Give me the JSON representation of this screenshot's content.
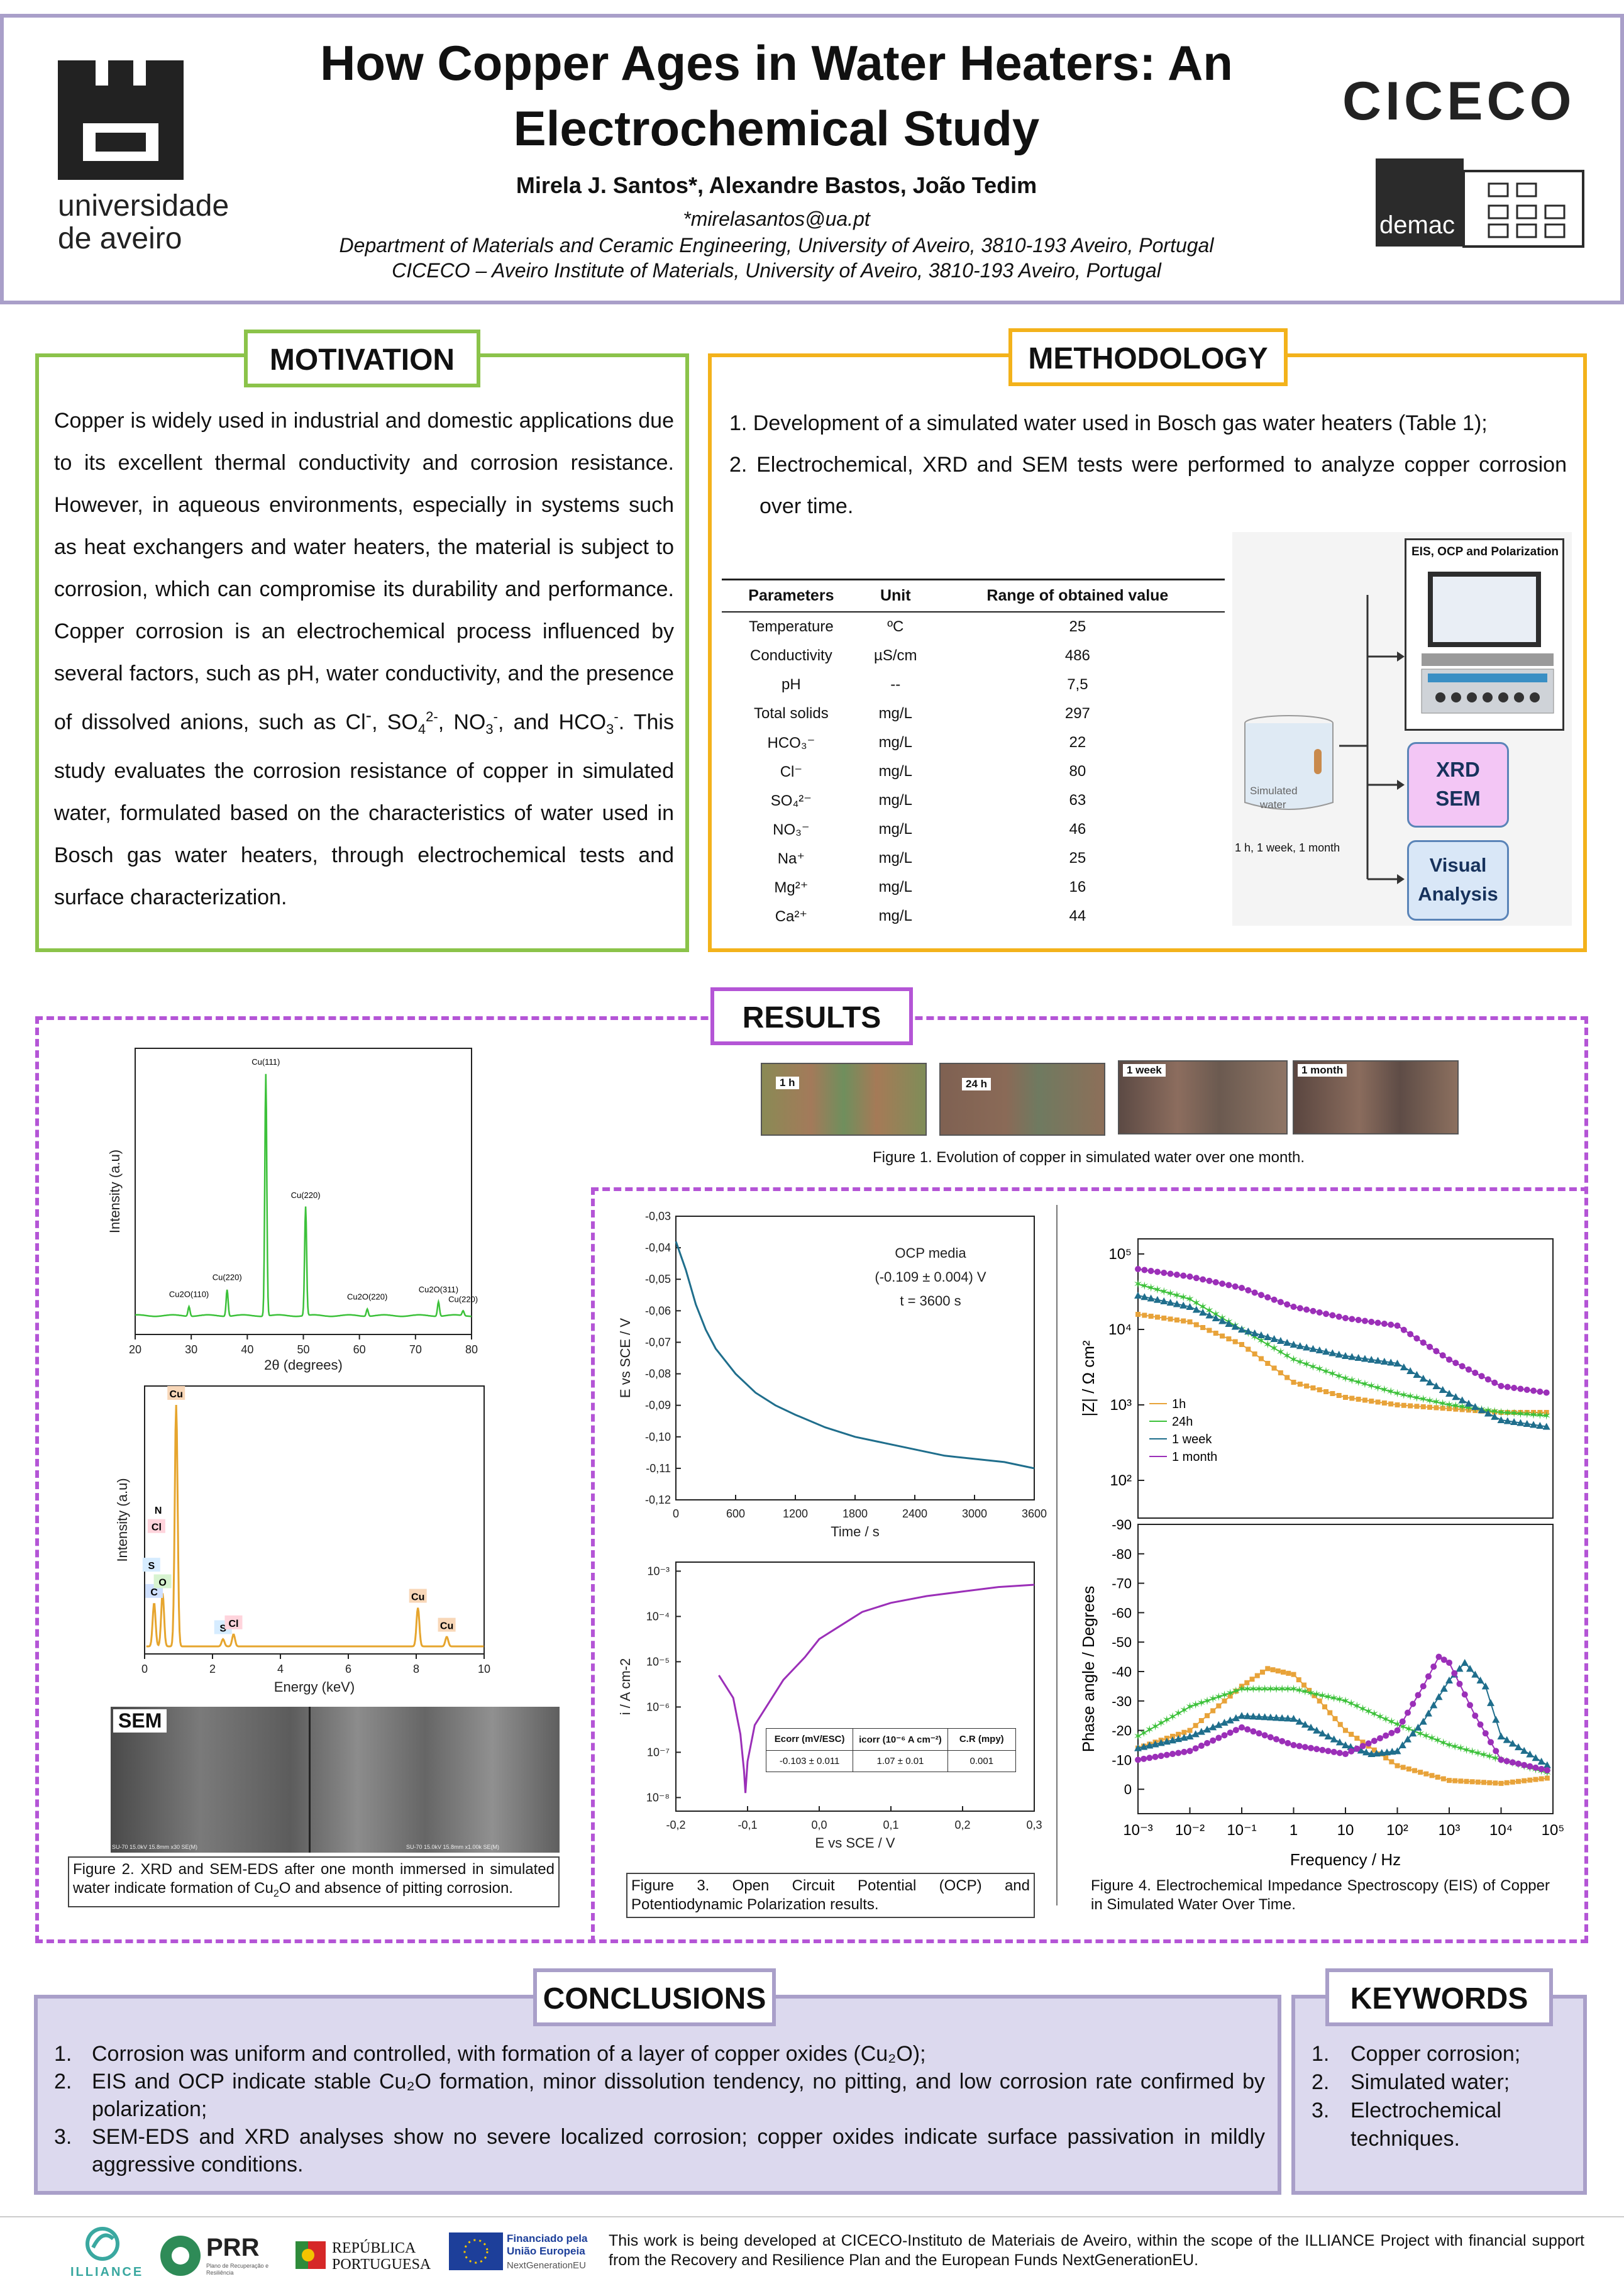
{
  "header": {
    "university_line1": "universidade",
    "university_line2": "de aveiro",
    "title_line1": "How Copper Ages in Water Heaters: An",
    "title_line2": "Electrochemical Study",
    "authors": "Mirela J. Santos*, Alexandre Bastos, João Tedim",
    "email": "*mirelasantos@ua.pt",
    "affiliation1": "Department of Materials and Ceramic Engineering, University of Aveiro, 3810-193 Aveiro, Portugal",
    "affiliation2": "CICECO – Aveiro Institute of Materials, University of Aveiro, 3810-193 Aveiro, Portugal",
    "ciceco_logo": "CICECO",
    "demac_logo": "demac"
  },
  "motivation": {
    "title": "MOTIVATION",
    "text_a": "Copper is widely used in industrial and domestic applications due to its excellent thermal conductivity and corrosion resistance. However, in aqueous environments, especially in systems such as heat exchangers and water heaters, the material is subject to corrosion, which can compromise its durability and performance. Copper corrosion is an electrochemical process influenced by several factors, such as pH, water conductivity, and the presence of dissolved anions, such as Cl",
    "text_b": ", SO",
    "text_c": ", NO",
    "text_d": ", and HCO",
    "text_e": ". This study evaluates the corrosion resistance of copper in simulated water, formulated based on the characteristics of water used in Bosch gas water heaters, through electrochemical tests and surface characterization."
  },
  "methodology": {
    "title": "METHODOLOGY",
    "items": [
      "1. Development of a simulated water used in Bosch gas water heaters (Table 1);",
      "2. Electrochemical, XRD and SEM tests were performed to analyze copper corrosion over time."
    ],
    "table": {
      "headers": [
        "Parameters",
        "Unit",
        "Range of obtained value"
      ],
      "rows": [
        [
          "Temperature",
          "ºC",
          "25"
        ],
        [
          "Conductivity",
          "µS/cm",
          "486"
        ],
        [
          "pH",
          "--",
          "7,5"
        ],
        [
          "Total solids",
          "mg/L",
          "297"
        ],
        [
          "HCO₃⁻",
          "mg/L",
          "22"
        ],
        [
          "Cl⁻",
          "mg/L",
          "80"
        ],
        [
          "SO₄²⁻",
          "mg/L",
          "63"
        ],
        [
          "NO₃⁻",
          "mg/L",
          "46"
        ],
        [
          "Na⁺",
          "mg/L",
          "25"
        ],
        [
          "Mg²⁺",
          "mg/L",
          "16"
        ],
        [
          "Ca²⁺",
          "mg/L",
          "44"
        ]
      ]
    },
    "diagram": {
      "eis_label": "EIS, OCP and Polarization",
      "beaker_label_1": "Simulated",
      "beaker_label_2": "water",
      "times_label": "1 h, 1 week, 1 month",
      "xrd_line1": "XRD",
      "xrd_line2": "SEM",
      "visual_line1": "Visual",
      "visual_line2": "Analysis"
    }
  },
  "results": {
    "title": "RESULTS",
    "photo_labels": [
      "1 h",
      "24 h",
      "1 week",
      "1 month"
    ],
    "fig1_caption": "Figure 1. Evolution of copper in simulated water over one month.",
    "fig2_caption_a": "Figure 2. XRD and SEM-EDS after one month immersed in simulated water indicate formation of Cu",
    "fig2_caption_b": "O and absence of pitting corrosion.",
    "fig3_caption": "Figure 3. Open Circuit Potential (OCP) and Potentiodynamic Polarization results.",
    "fig4_caption": "Figure 4. Electrochemical Impedance Spectroscopy (EIS) of Copper in Simulated Water Over Time.",
    "sem_label": "SEM",
    "sem_footer_left": "SU-70 15.0kV 15.8mm x30 SE(M)",
    "sem_footer_right": "SU-70 15.0kV 15.8mm x1.00k SE(M)"
  },
  "chart_data": [
    {
      "type": "line",
      "title": "XRD",
      "xlabel": "2θ (degrees)",
      "ylabel": "Intensity (a.u)",
      "xlim": [
        20,
        80
      ],
      "xticks": [
        "20",
        "30",
        "40",
        "50",
        "60",
        "70",
        "80"
      ],
      "peaks": [
        {
          "label": "Cu(111)",
          "x": 43.3,
          "rel": 1.0
        },
        {
          "label": "Cu(220)",
          "x": 50.4,
          "rel": 0.45
        },
        {
          "label": "Cu2O(110)",
          "x": 29.6,
          "rel": 0.04
        },
        {
          "label": "Cu(220)",
          "x": 36.4,
          "rel": 0.11
        },
        {
          "label": "Cu2O(220)",
          "x": 61.4,
          "rel": 0.03
        },
        {
          "label": "Cu2O(311)",
          "x": 74.1,
          "rel": 0.06
        },
        {
          "label": "Cu(220)",
          "x": 78.5,
          "rel": 0.02
        }
      ]
    },
    {
      "type": "bar",
      "title": "EDS",
      "xlabel": "Energy (keV)",
      "ylabel": "Intensity (a.u)",
      "xlim": [
        0,
        10
      ],
      "xticks": [
        "0",
        "2",
        "4",
        "6",
        "8",
        "10"
      ],
      "peaks": [
        {
          "label": "C",
          "x": 0.28,
          "rel": 0.18
        },
        {
          "label": "O",
          "x": 0.53,
          "rel": 0.22
        },
        {
          "label": "Cu",
          "x": 0.93,
          "rel": 1.0
        },
        {
          "label": "S",
          "x": 2.31,
          "rel": 0.03
        },
        {
          "label": "Cl",
          "x": 2.62,
          "rel": 0.05
        },
        {
          "label": "Cu",
          "x": 8.05,
          "rel": 0.16
        },
        {
          "label": "Cu",
          "x": 8.9,
          "rel": 0.04
        }
      ],
      "extra_labels": [
        "N",
        "Cl",
        "S"
      ]
    },
    {
      "type": "line",
      "title": "OCP",
      "xlabel": "Time / s",
      "ylabel": "E vs SCE / V",
      "xlim": [
        0,
        3600
      ],
      "ylim": [
        -0.12,
        -0.03
      ],
      "xticks": [
        "0",
        "600",
        "1200",
        "1800",
        "2400",
        "3000",
        "3600"
      ],
      "yticks": [
        "-0,03",
        "-0,04",
        "-0,05",
        "-0,06",
        "-0,07",
        "-0,08",
        "-0,09",
        "-0,10",
        "-0,11",
        "-0,12"
      ],
      "annotation": [
        "OCP media",
        "(-0.109 ± 0.004) V",
        "t = 3600 s"
      ],
      "x": [
        0,
        100,
        200,
        300,
        400,
        600,
        800,
        1000,
        1200,
        1500,
        1800,
        2100,
        2400,
        2700,
        3000,
        3300,
        3600
      ],
      "y": [
        -0.038,
        -0.047,
        -0.058,
        -0.066,
        -0.072,
        -0.08,
        -0.086,
        -0.09,
        -0.093,
        -0.097,
        -0.1,
        -0.102,
        -0.104,
        -0.106,
        -0.107,
        -0.108,
        -0.11
      ]
    },
    {
      "type": "line",
      "title": "Polarization",
      "xlabel": "E vs SCE / V",
      "ylabel": "i / A cm-2",
      "xlim": [
        -0.2,
        0.3
      ],
      "xticks": [
        "-0,2",
        "-0,1",
        "0,0",
        "0,1",
        "0,2",
        "0,3"
      ],
      "ylog_exp": [
        -8,
        -3
      ],
      "x": [
        -0.14,
        -0.12,
        -0.11,
        -0.105,
        -0.103,
        -0.1,
        -0.09,
        -0.07,
        -0.05,
        -0.02,
        0.0,
        0.03,
        0.06,
        0.1,
        0.15,
        0.2,
        0.25,
        0.3
      ],
      "log_i": [
        -5.3,
        -5.8,
        -6.6,
        -7.4,
        -7.9,
        -7.2,
        -6.4,
        -5.9,
        -5.4,
        -4.9,
        -4.5,
        -4.2,
        -3.9,
        -3.7,
        -3.55,
        -3.45,
        -3.35,
        -3.3
      ],
      "table": {
        "headers": [
          "Ecorr (mV/ESC)",
          "icorr (10⁻⁶ A cm⁻²)",
          "C.R (mpy)"
        ],
        "row": [
          "-0.103 ± 0.011",
          "1.07 ± 0.01",
          "0.001"
        ]
      }
    },
    {
      "type": "line",
      "title": "EIS |Z|",
      "xlabel": "Frequency / Hz",
      "ylabel": "|Z| / Ω cm²",
      "xlim_log": [
        -3,
        5
      ],
      "ylim_log": [
        1.5,
        5.2
      ],
      "series": [
        {
          "name": "1h",
          "color": "#e8a33a",
          "log_f": [
            -3,
            -2,
            -1,
            0,
            1,
            2,
            3,
            4,
            5
          ],
          "log_z": [
            4.2,
            4.1,
            3.8,
            3.3,
            3.1,
            3.0,
            2.95,
            2.9,
            2.9
          ]
        },
        {
          "name": "24h",
          "color": "#3cc13a",
          "log_f": [
            -3,
            -2,
            -1,
            0,
            1,
            2,
            3,
            4,
            5
          ],
          "log_z": [
            4.6,
            4.4,
            4.0,
            3.6,
            3.35,
            3.15,
            3.0,
            2.9,
            2.85
          ]
        },
        {
          "name": "1 week",
          "color": "#1f6e8c",
          "log_f": [
            -3,
            -2,
            -1,
            0,
            1,
            2,
            3,
            4,
            5
          ],
          "log_z": [
            4.45,
            4.3,
            4.0,
            3.8,
            3.65,
            3.55,
            3.15,
            2.8,
            2.7
          ]
        },
        {
          "name": "1 month",
          "color": "#9b2fb8",
          "log_f": [
            -3,
            -2,
            -1,
            0,
            1,
            2,
            3,
            4,
            5
          ],
          "log_z": [
            4.8,
            4.7,
            4.55,
            4.3,
            4.15,
            4.05,
            3.6,
            3.25,
            3.15
          ]
        }
      ]
    },
    {
      "type": "line",
      "title": "EIS phase",
      "xlabel": "Frequency / Hz",
      "ylabel": "Phase angle / Degrees",
      "xlim_log": [
        -3,
        5
      ],
      "ylim": [
        0,
        -90
      ],
      "xticks": [
        "10⁻³",
        "10⁻²",
        "10⁻¹",
        "1",
        "10",
        "10²",
        "10³",
        "10⁴",
        "10⁵"
      ],
      "yticks": [
        "-90",
        "-80",
        "-70",
        "-60",
        "-50",
        "-40",
        "-30",
        "-20",
        "-10",
        "0"
      ],
      "series": [
        {
          "name": "1h",
          "color": "#e8a33a",
          "log_f": [
            -3,
            -2,
            -1,
            -0.5,
            0,
            0.5,
            1,
            2,
            3,
            4,
            5
          ],
          "phase": [
            -14,
            -20,
            -35,
            -41,
            -39,
            -30,
            -20,
            -8,
            -3,
            -2,
            -4
          ]
        },
        {
          "name": "24h",
          "color": "#3cc13a",
          "log_f": [
            -3,
            -2,
            -1,
            0,
            1,
            2,
            3,
            4,
            5
          ],
          "phase": [
            -18,
            -28,
            -34,
            -34,
            -30,
            -22,
            -15,
            -10,
            -5
          ]
        },
        {
          "name": "1 week",
          "color": "#1f6e8c",
          "log_f": [
            -3,
            -2,
            -1,
            0,
            1,
            1.5,
            2,
            2.5,
            3,
            3.3,
            3.7,
            4,
            5
          ],
          "phase": [
            -14,
            -18,
            -25,
            -24,
            -15,
            -12,
            -13,
            -23,
            -37,
            -43,
            -35,
            -18,
            -7
          ]
        },
        {
          "name": "1 month",
          "color": "#9b2fb8",
          "log_f": [
            -3,
            -2,
            -1,
            0,
            1,
            2,
            2.5,
            2.8,
            3,
            3.5,
            4,
            5
          ],
          "phase": [
            -10,
            -13,
            -21,
            -15,
            -12,
            -20,
            -35,
            -45,
            -43,
            -25,
            -10,
            -6
          ]
        }
      ]
    }
  ],
  "conclusions": {
    "title": "CONCLUSIONS",
    "items": [
      "Corrosion was uniform and controlled, with formation of a layer of copper oxides (Cu₂O);",
      "EIS and OCP indicate stable Cu₂O formation, minor dissolution tendency, no pitting, and low corrosion rate confirmed by polarization;",
      "SEM-EDS and XRD analyses show no severe localized corrosion; copper oxides indicate surface passivation in mildly aggressive conditions."
    ],
    "numbers": [
      "1.",
      "2.",
      "3."
    ]
  },
  "keywords": {
    "title": "KEYWORDS",
    "items": [
      "Copper corrosion;",
      "Simulated water;",
      "Electrochemical techniques."
    ],
    "numbers": [
      "1.",
      "2.",
      "3."
    ]
  },
  "footer": {
    "illiance": "ILLIANCE",
    "prr": "PRR",
    "prr_sub": "Plano de Recuperação e Resiliência",
    "republica_1": "REPÚBLICA",
    "republica_2": "PORTUGUESA",
    "eu_1": "Financiado pela",
    "eu_2": "União Europeia",
    "eu_3": "NextGenerationEU",
    "funding_text": "This work is being developed at CICECO-Instituto de Materiais de Aveiro, within the scope of the ILLIANCE Project with financial support from the Recovery and Resilience Plan and the European Funds NextGenerationEU."
  },
  "colors": {
    "header_border": "#a99fc9",
    "motivation": "#8bc34a",
    "methodology": "#f3b21b",
    "results": "#b455d6",
    "conclusions_bg": "#dcd9ee",
    "conclusions_border": "#a99fc9"
  }
}
